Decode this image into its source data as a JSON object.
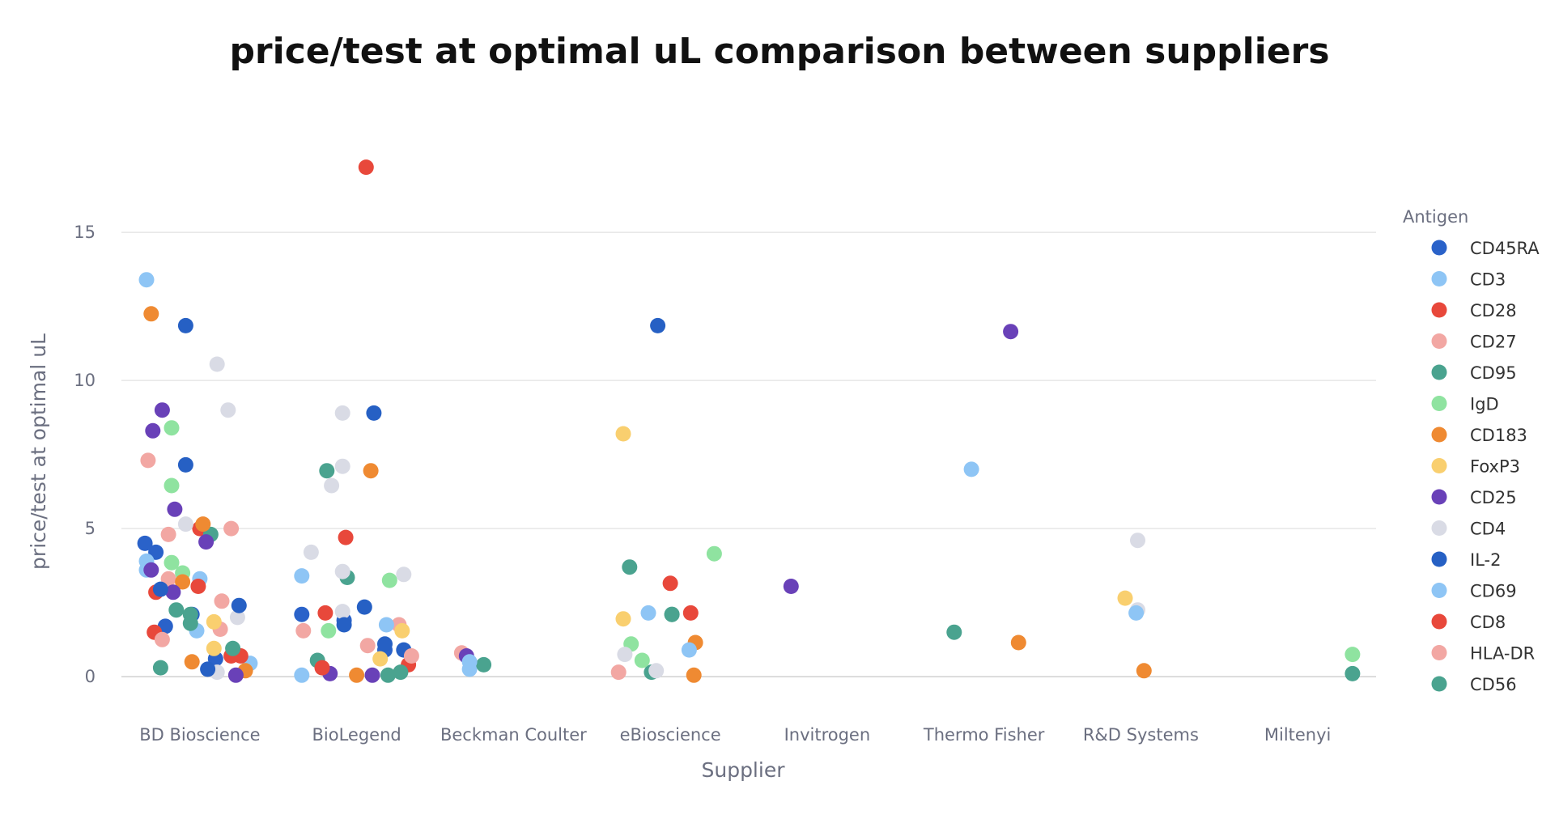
{
  "chart_data": {
    "type": "scatter",
    "title": "price/test at optimal uL comparison between suppliers",
    "xlabel": "Supplier",
    "ylabel": "price/test at optimal uL",
    "ylim": [
      -1.2,
      18.2
    ],
    "yticks": [
      0,
      5,
      10,
      15
    ],
    "grid": true,
    "legend_title": "Antigen",
    "legend_placement": "right",
    "categories": [
      "BD Bioscience",
      "BioLegend",
      "Beckman Coulter",
      "eBioscience",
      "Invitrogen",
      "Thermo Fisher",
      "R&D Systems",
      "Miltenyi"
    ],
    "series": [
      {
        "name": "CD45RA",
        "color": "#2a62c9",
        "points": [
          {
            "x": "BD Bioscience",
            "jitter": -0.35,
            "y": 4.5
          },
          {
            "x": "BD Bioscience",
            "jitter": -0.28,
            "y": 4.2
          },
          {
            "x": "BD Bioscience",
            "jitter": -0.22,
            "y": 1.7
          },
          {
            "x": "BD Bioscience",
            "jitter": -0.05,
            "y": 2.1
          },
          {
            "x": "BD Bioscience",
            "jitter": 0.1,
            "y": 0.6
          },
          {
            "x": "BioLegend",
            "jitter": -0.35,
            "y": 2.1
          },
          {
            "x": "BioLegend",
            "jitter": -0.08,
            "y": 1.9
          },
          {
            "x": "BioLegend",
            "jitter": 0.18,
            "y": 0.9
          }
        ]
      },
      {
        "name": "CD3",
        "color": "#8ec5f5",
        "points": [
          {
            "x": "BD Bioscience",
            "jitter": -0.34,
            "y": 13.4
          },
          {
            "x": "BD Bioscience",
            "jitter": -0.34,
            "y": 3.9
          },
          {
            "x": "BD Bioscience",
            "jitter": -0.34,
            "y": 3.6
          },
          {
            "x": "BD Bioscience",
            "jitter": 0.0,
            "y": 3.3
          },
          {
            "x": "BD Bioscience",
            "jitter": 0.32,
            "y": 0.45
          },
          {
            "x": "BioLegend",
            "jitter": -0.35,
            "y": 3.4
          },
          {
            "x": "BioLegend",
            "jitter": -0.35,
            "y": 0.05
          },
          {
            "x": "Beckman Coulter",
            "jitter": -0.28,
            "y": 0.25
          },
          {
            "x": "Thermo Fisher",
            "jitter": -0.08,
            "y": 7.0
          }
        ]
      },
      {
        "name": "CD28",
        "color": "#e8483b",
        "points": [
          {
            "x": "BD Bioscience",
            "jitter": -0.28,
            "y": 2.85
          },
          {
            "x": "BD Bioscience",
            "jitter": -0.29,
            "y": 1.5
          },
          {
            "x": "BD Bioscience",
            "jitter": 0.0,
            "y": 5.0
          },
          {
            "x": "BD Bioscience",
            "jitter": 0.2,
            "y": 0.7
          },
          {
            "x": "BioLegend",
            "jitter": 0.06,
            "y": 17.2
          },
          {
            "x": "BioLegend",
            "jitter": -0.2,
            "y": 2.15
          },
          {
            "x": "eBioscience",
            "jitter": 0.0,
            "y": 3.15
          },
          {
            "x": "eBioscience",
            "jitter": 0.13,
            "y": 2.15
          }
        ]
      },
      {
        "name": "CD27",
        "color": "#f2a7a3",
        "points": [
          {
            "x": "BD Bioscience",
            "jitter": -0.33,
            "y": 7.3
          },
          {
            "x": "BD Bioscience",
            "jitter": -0.2,
            "y": 4.8
          },
          {
            "x": "BD Bioscience",
            "jitter": -0.2,
            "y": 3.3
          },
          {
            "x": "BD Bioscience",
            "jitter": 0.14,
            "y": 2.55
          },
          {
            "x": "BD Bioscience",
            "jitter": 0.2,
            "y": 5.0
          },
          {
            "x": "BD Bioscience",
            "jitter": 0.13,
            "y": 1.6
          },
          {
            "x": "BioLegend",
            "jitter": 0.27,
            "y": 1.75
          },
          {
            "x": "BioLegend",
            "jitter": -0.34,
            "y": 1.55
          },
          {
            "x": "Beckman Coulter",
            "jitter": -0.33,
            "y": 0.8
          },
          {
            "x": "eBioscience",
            "jitter": -0.33,
            "y": 0.15
          }
        ]
      },
      {
        "name": "CD95",
        "color": "#4aa38f",
        "points": [
          {
            "x": "BD Bioscience",
            "jitter": -0.15,
            "y": 2.25
          },
          {
            "x": "BD Bioscience",
            "jitter": 0.07,
            "y": 4.8
          },
          {
            "x": "BD Bioscience",
            "jitter": -0.25,
            "y": 0.3
          },
          {
            "x": "BioLegend",
            "jitter": -0.19,
            "y": 6.95
          },
          {
            "x": "BioLegend",
            "jitter": -0.06,
            "y": 3.35
          },
          {
            "x": "BioLegend",
            "jitter": -0.25,
            "y": 0.55
          },
          {
            "x": "Beckman Coulter",
            "jitter": -0.19,
            "y": 0.4
          },
          {
            "x": "eBioscience",
            "jitter": -0.26,
            "y": 3.7
          },
          {
            "x": "eBioscience",
            "jitter": 0.01,
            "y": 2.1
          },
          {
            "x": "eBioscience",
            "jitter": -0.12,
            "y": 0.15
          }
        ]
      },
      {
        "name": "IgD",
        "color": "#8fe3a0",
        "points": [
          {
            "x": "BD Bioscience",
            "jitter": -0.18,
            "y": 8.4
          },
          {
            "x": "BD Bioscience",
            "jitter": -0.18,
            "y": 6.45
          },
          {
            "x": "BD Bioscience",
            "jitter": -0.18,
            "y": 3.85
          },
          {
            "x": "BD Bioscience",
            "jitter": -0.11,
            "y": 3.5
          },
          {
            "x": "BioLegend",
            "jitter": 0.21,
            "y": 3.25
          },
          {
            "x": "BioLegend",
            "jitter": -0.18,
            "y": 1.55
          },
          {
            "x": "eBioscience",
            "jitter": 0.28,
            "y": 4.15
          },
          {
            "x": "eBioscience",
            "jitter": -0.25,
            "y": 1.1
          },
          {
            "x": "eBioscience",
            "jitter": -0.18,
            "y": 0.55
          },
          {
            "x": "Miltenyi",
            "jitter": 0.35,
            "y": 0.75
          }
        ]
      },
      {
        "name": "CD183",
        "color": "#ef8a32",
        "points": [
          {
            "x": "BD Bioscience",
            "jitter": -0.31,
            "y": 12.25
          },
          {
            "x": "BD Bioscience",
            "jitter": 0.02,
            "y": 5.15
          },
          {
            "x": "BD Bioscience",
            "jitter": -0.11,
            "y": 3.2
          },
          {
            "x": "BD Bioscience",
            "jitter": -0.05,
            "y": 0.5
          },
          {
            "x": "BD Bioscience",
            "jitter": 0.29,
            "y": 0.2
          },
          {
            "x": "BioLegend",
            "jitter": 0.09,
            "y": 6.95
          },
          {
            "x": "BioLegend",
            "jitter": 0.0,
            "y": 0.05
          },
          {
            "x": "eBioscience",
            "jitter": 0.16,
            "y": 1.15
          },
          {
            "x": "eBioscience",
            "jitter": 0.15,
            "y": 0.05
          },
          {
            "x": "Thermo Fisher",
            "jitter": 0.22,
            "y": 1.15
          },
          {
            "x": "R&D Systems",
            "jitter": 0.02,
            "y": 0.2
          }
        ]
      },
      {
        "name": "FoxP3",
        "color": "#f9cf6f",
        "points": [
          {
            "x": "BD Bioscience",
            "jitter": 0.09,
            "y": 1.85
          },
          {
            "x": "BD Bioscience",
            "jitter": 0.09,
            "y": 0.95
          },
          {
            "x": "BioLegend",
            "jitter": 0.29,
            "y": 1.55
          },
          {
            "x": "BioLegend",
            "jitter": 0.15,
            "y": 0.6
          },
          {
            "x": "eBioscience",
            "jitter": -0.3,
            "y": 8.2
          },
          {
            "x": "eBioscience",
            "jitter": -0.3,
            "y": 1.95
          },
          {
            "x": "R&D Systems",
            "jitter": -0.1,
            "y": 2.65
          }
        ]
      },
      {
        "name": "CD25",
        "color": "#6941b8",
        "points": [
          {
            "x": "BD Bioscience",
            "jitter": -0.24,
            "y": 9.0
          },
          {
            "x": "BD Bioscience",
            "jitter": -0.3,
            "y": 8.3
          },
          {
            "x": "BD Bioscience",
            "jitter": -0.16,
            "y": 5.65
          },
          {
            "x": "BD Bioscience",
            "jitter": -0.31,
            "y": 3.6
          },
          {
            "x": "BD Bioscience",
            "jitter": 0.04,
            "y": 4.55
          },
          {
            "x": "BD Bioscience",
            "jitter": -0.17,
            "y": 2.85
          },
          {
            "x": "BD Bioscience",
            "jitter": 0.23,
            "y": 0.05
          },
          {
            "x": "BioLegend",
            "jitter": 0.1,
            "y": 0.05
          },
          {
            "x": "BioLegend",
            "jitter": -0.17,
            "y": 0.1
          },
          {
            "x": "Beckman Coulter",
            "jitter": -0.3,
            "y": 0.7
          },
          {
            "x": "Invitrogen",
            "jitter": -0.23,
            "y": 3.05
          },
          {
            "x": "Thermo Fisher",
            "jitter": 0.17,
            "y": 11.65
          }
        ]
      },
      {
        "name": "CD4",
        "color": "#d9dbe5",
        "points": [
          {
            "x": "BD Bioscience",
            "jitter": 0.11,
            "y": 10.55
          },
          {
            "x": "BD Bioscience",
            "jitter": 0.18,
            "y": 9.0
          },
          {
            "x": "BD Bioscience",
            "jitter": -0.09,
            "y": 5.15
          },
          {
            "x": "BD Bioscience",
            "jitter": 0.24,
            "y": 2.0
          },
          {
            "x": "BD Bioscience",
            "jitter": 0.11,
            "y": 0.15
          },
          {
            "x": "BioLegend",
            "jitter": -0.09,
            "y": 8.9
          },
          {
            "x": "BioLegend",
            "jitter": -0.09,
            "y": 7.1
          },
          {
            "x": "BioLegend",
            "jitter": -0.16,
            "y": 6.45
          },
          {
            "x": "BioLegend",
            "jitter": -0.29,
            "y": 4.2
          },
          {
            "x": "BioLegend",
            "jitter": -0.09,
            "y": 3.55
          },
          {
            "x": "BioLegend",
            "jitter": 0.3,
            "y": 3.45
          },
          {
            "x": "BioLegend",
            "jitter": -0.09,
            "y": 2.2
          },
          {
            "x": "eBioscience",
            "jitter": -0.29,
            "y": 0.75
          },
          {
            "x": "eBioscience",
            "jitter": -0.09,
            "y": 0.2
          },
          {
            "x": "R&D Systems",
            "jitter": -0.02,
            "y": 4.6
          },
          {
            "x": "R&D Systems",
            "jitter": -0.02,
            "y": 2.25
          }
        ]
      },
      {
        "name": "IL-2",
        "color": "#2660c4",
        "points": [
          {
            "x": "BD Bioscience",
            "jitter": -0.09,
            "y": 11.85
          },
          {
            "x": "BD Bioscience",
            "jitter": -0.09,
            "y": 7.15
          },
          {
            "x": "BD Bioscience",
            "jitter": 0.25,
            "y": 2.4
          },
          {
            "x": "BD Bioscience",
            "jitter": -0.25,
            "y": 2.95
          },
          {
            "x": "BD Bioscience",
            "jitter": 0.05,
            "y": 0.25
          },
          {
            "x": "BioLegend",
            "jitter": 0.11,
            "y": 8.9
          },
          {
            "x": "BioLegend",
            "jitter": 0.05,
            "y": 2.35
          },
          {
            "x": "BioLegend",
            "jitter": -0.08,
            "y": 1.75
          },
          {
            "x": "BioLegend",
            "jitter": 0.18,
            "y": 1.1
          },
          {
            "x": "BioLegend",
            "jitter": 0.3,
            "y": 0.9
          },
          {
            "x": "eBioscience",
            "jitter": -0.08,
            "y": 11.85
          }
        ]
      },
      {
        "name": "CD69",
        "color": "#8ec5f5",
        "points": [
          {
            "x": "BD Bioscience",
            "jitter": -0.02,
            "y": 1.55
          },
          {
            "x": "BioLegend",
            "jitter": 0.19,
            "y": 1.75
          },
          {
            "x": "Beckman Coulter",
            "jitter": -0.28,
            "y": 0.5
          },
          {
            "x": "eBioscience",
            "jitter": -0.14,
            "y": 2.15
          },
          {
            "x": "eBioscience",
            "jitter": 0.12,
            "y": 0.9
          },
          {
            "x": "R&D Systems",
            "jitter": -0.03,
            "y": 2.15
          }
        ]
      },
      {
        "name": "CD8",
        "color": "#e8483b",
        "points": [
          {
            "x": "BD Bioscience",
            "jitter": -0.01,
            "y": 3.05
          },
          {
            "x": "BD Bioscience",
            "jitter": 0.26,
            "y": 0.7
          },
          {
            "x": "BioLegend",
            "jitter": -0.07,
            "y": 4.7
          },
          {
            "x": "BioLegend",
            "jitter": 0.33,
            "y": 0.4
          },
          {
            "x": "BioLegend",
            "jitter": -0.22,
            "y": 0.3
          }
        ]
      },
      {
        "name": "HLA-DR",
        "color": "#f2a7a3",
        "points": [
          {
            "x": "BD Bioscience",
            "jitter": -0.24,
            "y": 1.25
          },
          {
            "x": "BioLegend",
            "jitter": 0.35,
            "y": 0.7
          },
          {
            "x": "BioLegend",
            "jitter": 0.07,
            "y": 1.05
          }
        ]
      },
      {
        "name": "CD56",
        "color": "#4aa38f",
        "points": [
          {
            "x": "BD Bioscience",
            "jitter": -0.06,
            "y": 2.1
          },
          {
            "x": "BD Bioscience",
            "jitter": -0.06,
            "y": 1.8
          },
          {
            "x": "BD Bioscience",
            "jitter": 0.21,
            "y": 0.95
          },
          {
            "x": "BioLegend",
            "jitter": 0.28,
            "y": 0.15
          },
          {
            "x": "BioLegend",
            "jitter": 0.2,
            "y": 0.05
          },
          {
            "x": "eBioscience",
            "jitter": 0.01,
            "y": 2.1
          },
          {
            "x": "Thermo Fisher",
            "jitter": -0.19,
            "y": 1.5
          },
          {
            "x": "Miltenyi",
            "jitter": 0.35,
            "y": 0.1
          }
        ]
      }
    ]
  }
}
